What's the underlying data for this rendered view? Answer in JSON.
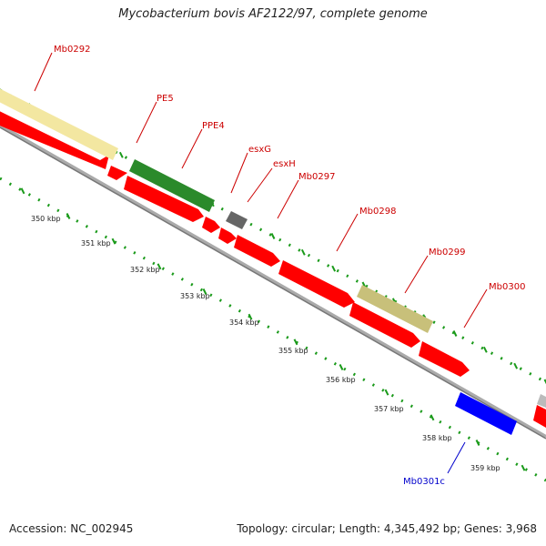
{
  "title": "Mycobacterium bovis AF2122/97, complete genome",
  "footer": {
    "accession": "Accession: NC_002945",
    "topology": "Topology: circular; Length: 4,345,492 bp; Genes: 3,968"
  },
  "colors": {
    "cds": "#ff0000",
    "pe": "#f3e7a1",
    "ppe": "#2b8a2b",
    "esx": "#808080",
    "pe_ppe_olive": "#c8c07a",
    "reverse_gene": "#0000ff",
    "backbone": "#999999",
    "tick": "#1a9a1a"
  },
  "scale": {
    "ticks": [
      "350 kbp",
      "351 kbp",
      "352 kbp",
      "353 kbp",
      "354 kbp",
      "355 kbp",
      "356 kbp",
      "357 kbp",
      "358 kbp",
      "359 kbp"
    ]
  },
  "gene_labels": [
    {
      "name": "Mb0292",
      "strand": "forward"
    },
    {
      "name": "PE5",
      "strand": "forward"
    },
    {
      "name": "PPE4",
      "strand": "forward"
    },
    {
      "name": "esxG",
      "strand": "forward"
    },
    {
      "name": "esxH",
      "strand": "forward"
    },
    {
      "name": "Mb0297",
      "strand": "forward"
    },
    {
      "name": "Mb0298",
      "strand": "forward"
    },
    {
      "name": "Mb0299",
      "strand": "forward"
    },
    {
      "name": "Mb0300",
      "strand": "forward"
    },
    {
      "name": "Mb0301c",
      "strand": "reverse"
    }
  ]
}
